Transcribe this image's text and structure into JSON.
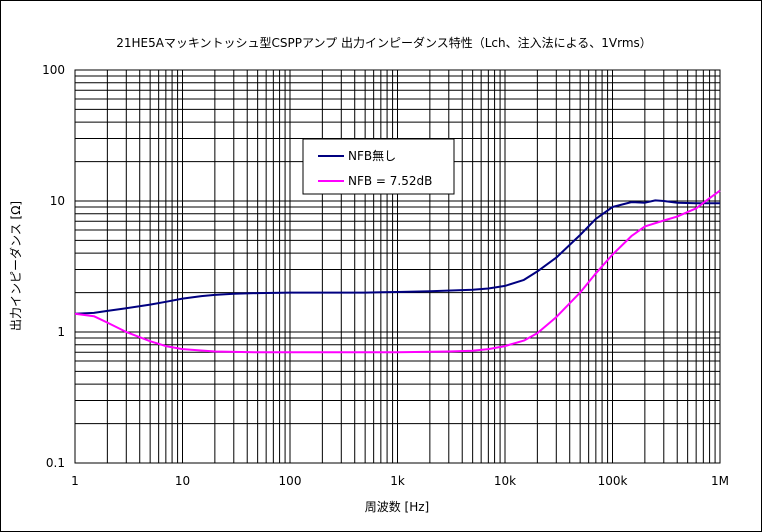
{
  "chart_data": {
    "type": "line",
    "title": "21HE5Aマッキントッシュ型CSPPアンプ 出力インピーダンス特性（Lch、注入法による、1Vrms）",
    "xlabel": "周波数 [Hz]",
    "ylabel": "出力インピーダンス [Ω]",
    "x_scale": "log",
    "y_scale": "log",
    "xlim": [
      1,
      1000000
    ],
    "ylim": [
      0.1,
      100
    ],
    "grid": true,
    "legend_position": "upper-center",
    "x_ticks": [
      {
        "value": 1,
        "label": "1"
      },
      {
        "value": 10,
        "label": "10"
      },
      {
        "value": 100,
        "label": "100"
      },
      {
        "value": 1000,
        "label": "1k"
      },
      {
        "value": 10000,
        "label": "10k"
      },
      {
        "value": 100000,
        "label": "100k"
      },
      {
        "value": 1000000,
        "label": "1M"
      }
    ],
    "y_ticks": [
      {
        "value": 0.1,
        "label": "0.1"
      },
      {
        "value": 1,
        "label": "1"
      },
      {
        "value": 10,
        "label": "10"
      },
      {
        "value": 100,
        "label": "100"
      }
    ],
    "series": [
      {
        "name": "NFB無し",
        "color": "#000080",
        "points": [
          [
            1,
            1.38
          ],
          [
            1.5,
            1.4
          ],
          [
            2,
            1.45
          ],
          [
            3,
            1.52
          ],
          [
            5,
            1.62
          ],
          [
            7,
            1.7
          ],
          [
            10,
            1.8
          ],
          [
            15,
            1.88
          ],
          [
            20,
            1.92
          ],
          [
            30,
            1.96
          ],
          [
            50,
            1.98
          ],
          [
            100,
            2.0
          ],
          [
            200,
            2.0
          ],
          [
            500,
            2.0
          ],
          [
            1000,
            2.02
          ],
          [
            2000,
            2.05
          ],
          [
            5000,
            2.1
          ],
          [
            7000,
            2.15
          ],
          [
            10000,
            2.25
          ],
          [
            15000,
            2.5
          ],
          [
            20000,
            2.9
          ],
          [
            30000,
            3.7
          ],
          [
            50000,
            5.5
          ],
          [
            70000,
            7.3
          ],
          [
            100000,
            9.0
          ],
          [
            150000,
            9.8
          ],
          [
            200000,
            9.7
          ],
          [
            250000,
            10.1
          ],
          [
            300000,
            10.0
          ],
          [
            400000,
            9.7
          ],
          [
            600000,
            9.6
          ],
          [
            1000000,
            9.6
          ]
        ]
      },
      {
        "name": "NFB = 7.52dB",
        "color": "#FF00FF",
        "points": [
          [
            1,
            1.38
          ],
          [
            1.5,
            1.32
          ],
          [
            2,
            1.18
          ],
          [
            3,
            1.0
          ],
          [
            5,
            0.85
          ],
          [
            7,
            0.78
          ],
          [
            10,
            0.74
          ],
          [
            20,
            0.71
          ],
          [
            50,
            0.7
          ],
          [
            100,
            0.7
          ],
          [
            300,
            0.7
          ],
          [
            1000,
            0.7
          ],
          [
            3000,
            0.71
          ],
          [
            5000,
            0.72
          ],
          [
            7000,
            0.74
          ],
          [
            10000,
            0.78
          ],
          [
            15000,
            0.86
          ],
          [
            20000,
            0.98
          ],
          [
            30000,
            1.3
          ],
          [
            50000,
            2.0
          ],
          [
            70000,
            2.8
          ],
          [
            100000,
            3.9
          ],
          [
            150000,
            5.4
          ],
          [
            200000,
            6.4
          ],
          [
            300000,
            7.1
          ],
          [
            400000,
            7.6
          ],
          [
            600000,
            8.8
          ],
          [
            800000,
            10.5
          ],
          [
            1000000,
            12.0
          ]
        ]
      }
    ]
  }
}
